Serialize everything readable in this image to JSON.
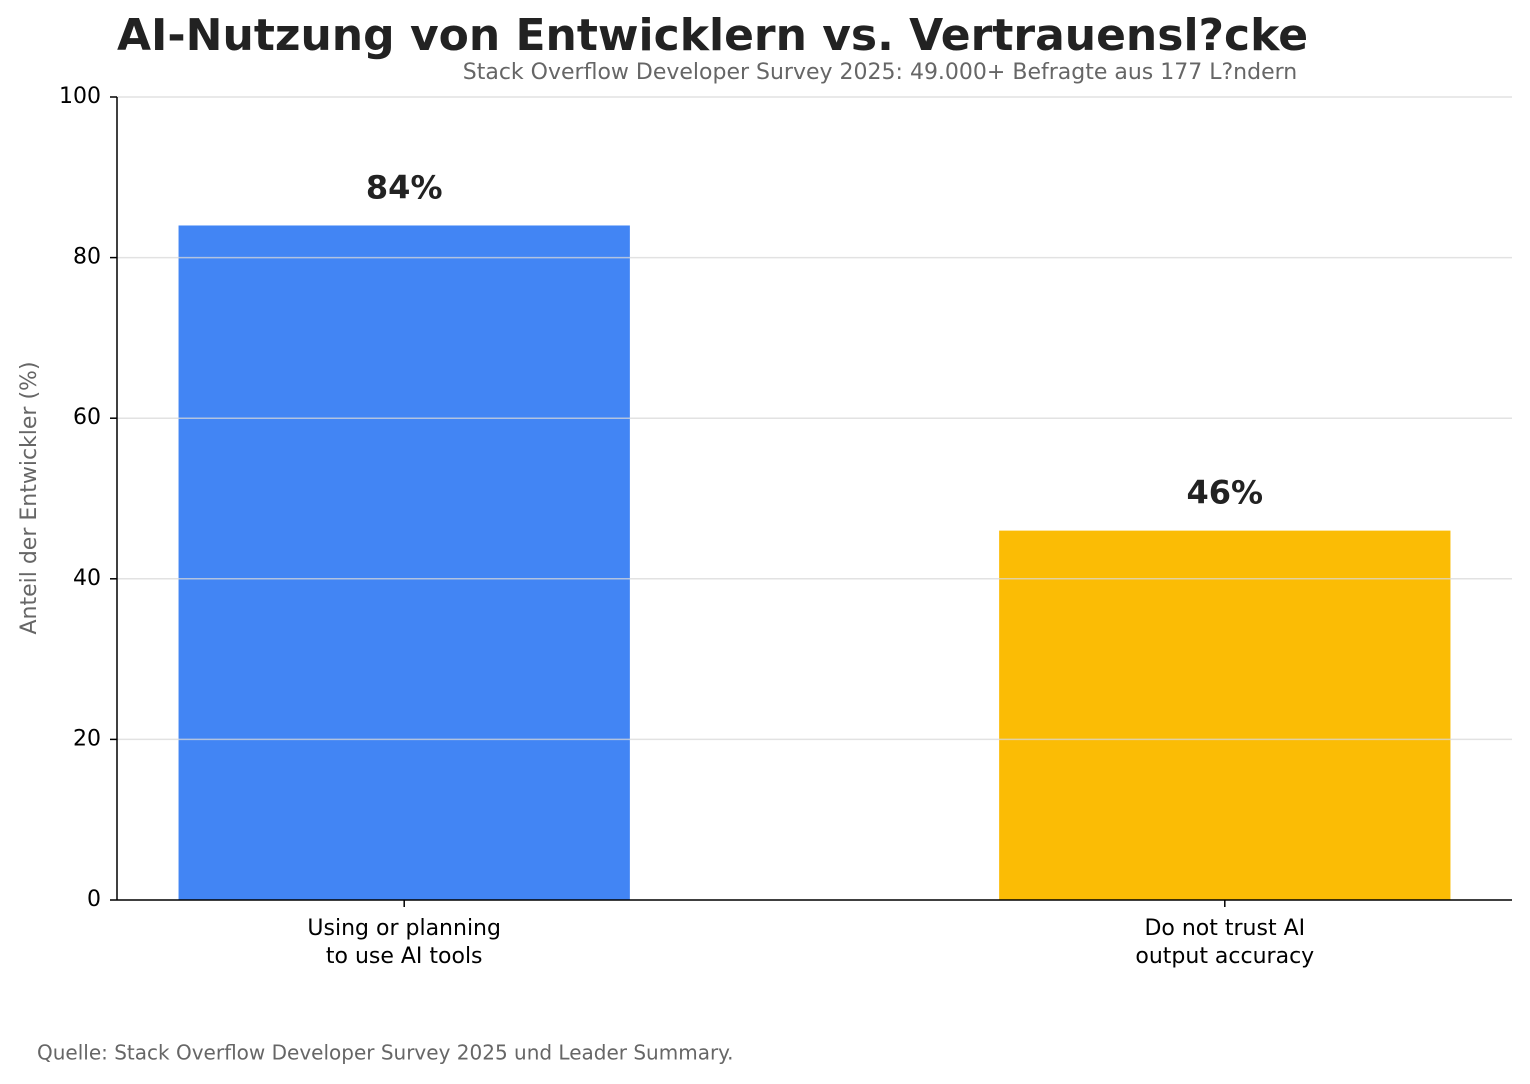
{
  "chart_data": {
    "type": "bar",
    "title": "AI-Nutzung von Entwicklern vs. Vertrauensl?cke",
    "subtitle": "Stack Overflow Developer Survey 2025: 49.000+ Befragte aus 177 L?ndern",
    "y_label": "Anteil der Entwickler (%)",
    "source": "Quelle: Stack Overflow Developer Survey 2025 und Leader Summary.",
    "categories": [
      "Using or planning\nto use AI tools",
      "Do not trust AI\noutput accuracy"
    ],
    "values": [
      84,
      46
    ],
    "value_labels": [
      "84%",
      "46%"
    ],
    "colors": [
      "#4285f4",
      "#fbbc05"
    ],
    "ylim": [
      0,
      100
    ],
    "yticks": [
      0,
      20,
      40,
      60,
      80,
      100
    ],
    "grid": true
  }
}
